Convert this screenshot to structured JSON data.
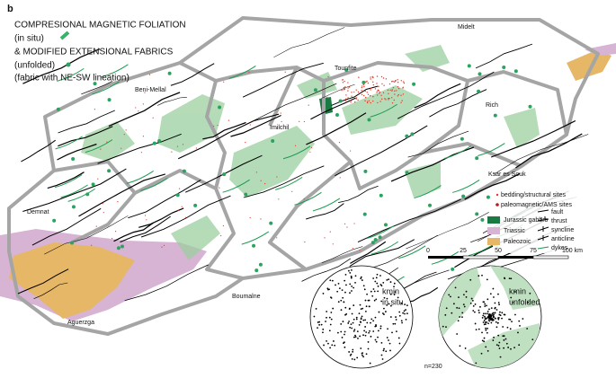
{
  "panel_label": "b",
  "legend_main": [
    "COMPRESIONAL MAGNETIC FOLIATION",
    "(in situ)",
    "& MODIFIED EXTENSIONAL FABRICS",
    "(unfolded)",
    "(fabric with NE-SW lineation)"
  ],
  "places": [
    {
      "label": "Midelt"
    },
    {
      "label": "Tounfite"
    },
    {
      "label": "Beni-Mellal"
    },
    {
      "label": "Imilchil"
    },
    {
      "label": "Rich"
    },
    {
      "label": "Ksar es Souk"
    },
    {
      "label": "Demnat"
    },
    {
      "label": "Boumalne"
    },
    {
      "label": "Aguerzga"
    }
  ],
  "legend_sites": [
    "bedding/structural sites",
    "paleomagnetic/AMS sites"
  ],
  "legend_units": [
    "Jurassic gabbro",
    "Triassic",
    "Paleozoic"
  ],
  "legend_structures": [
    "fault",
    "thrust",
    "syncline",
    "anticline",
    "dykes"
  ],
  "scale": {
    "labels": [
      "0",
      "25",
      "50",
      "75",
      "100 km"
    ]
  },
  "stereonets": [
    {
      "title": "kmin",
      "subtitle": "in situ"
    },
    {
      "title": "kmin",
      "subtitle": "unfolded"
    }
  ],
  "sample_count": "n=230"
}
